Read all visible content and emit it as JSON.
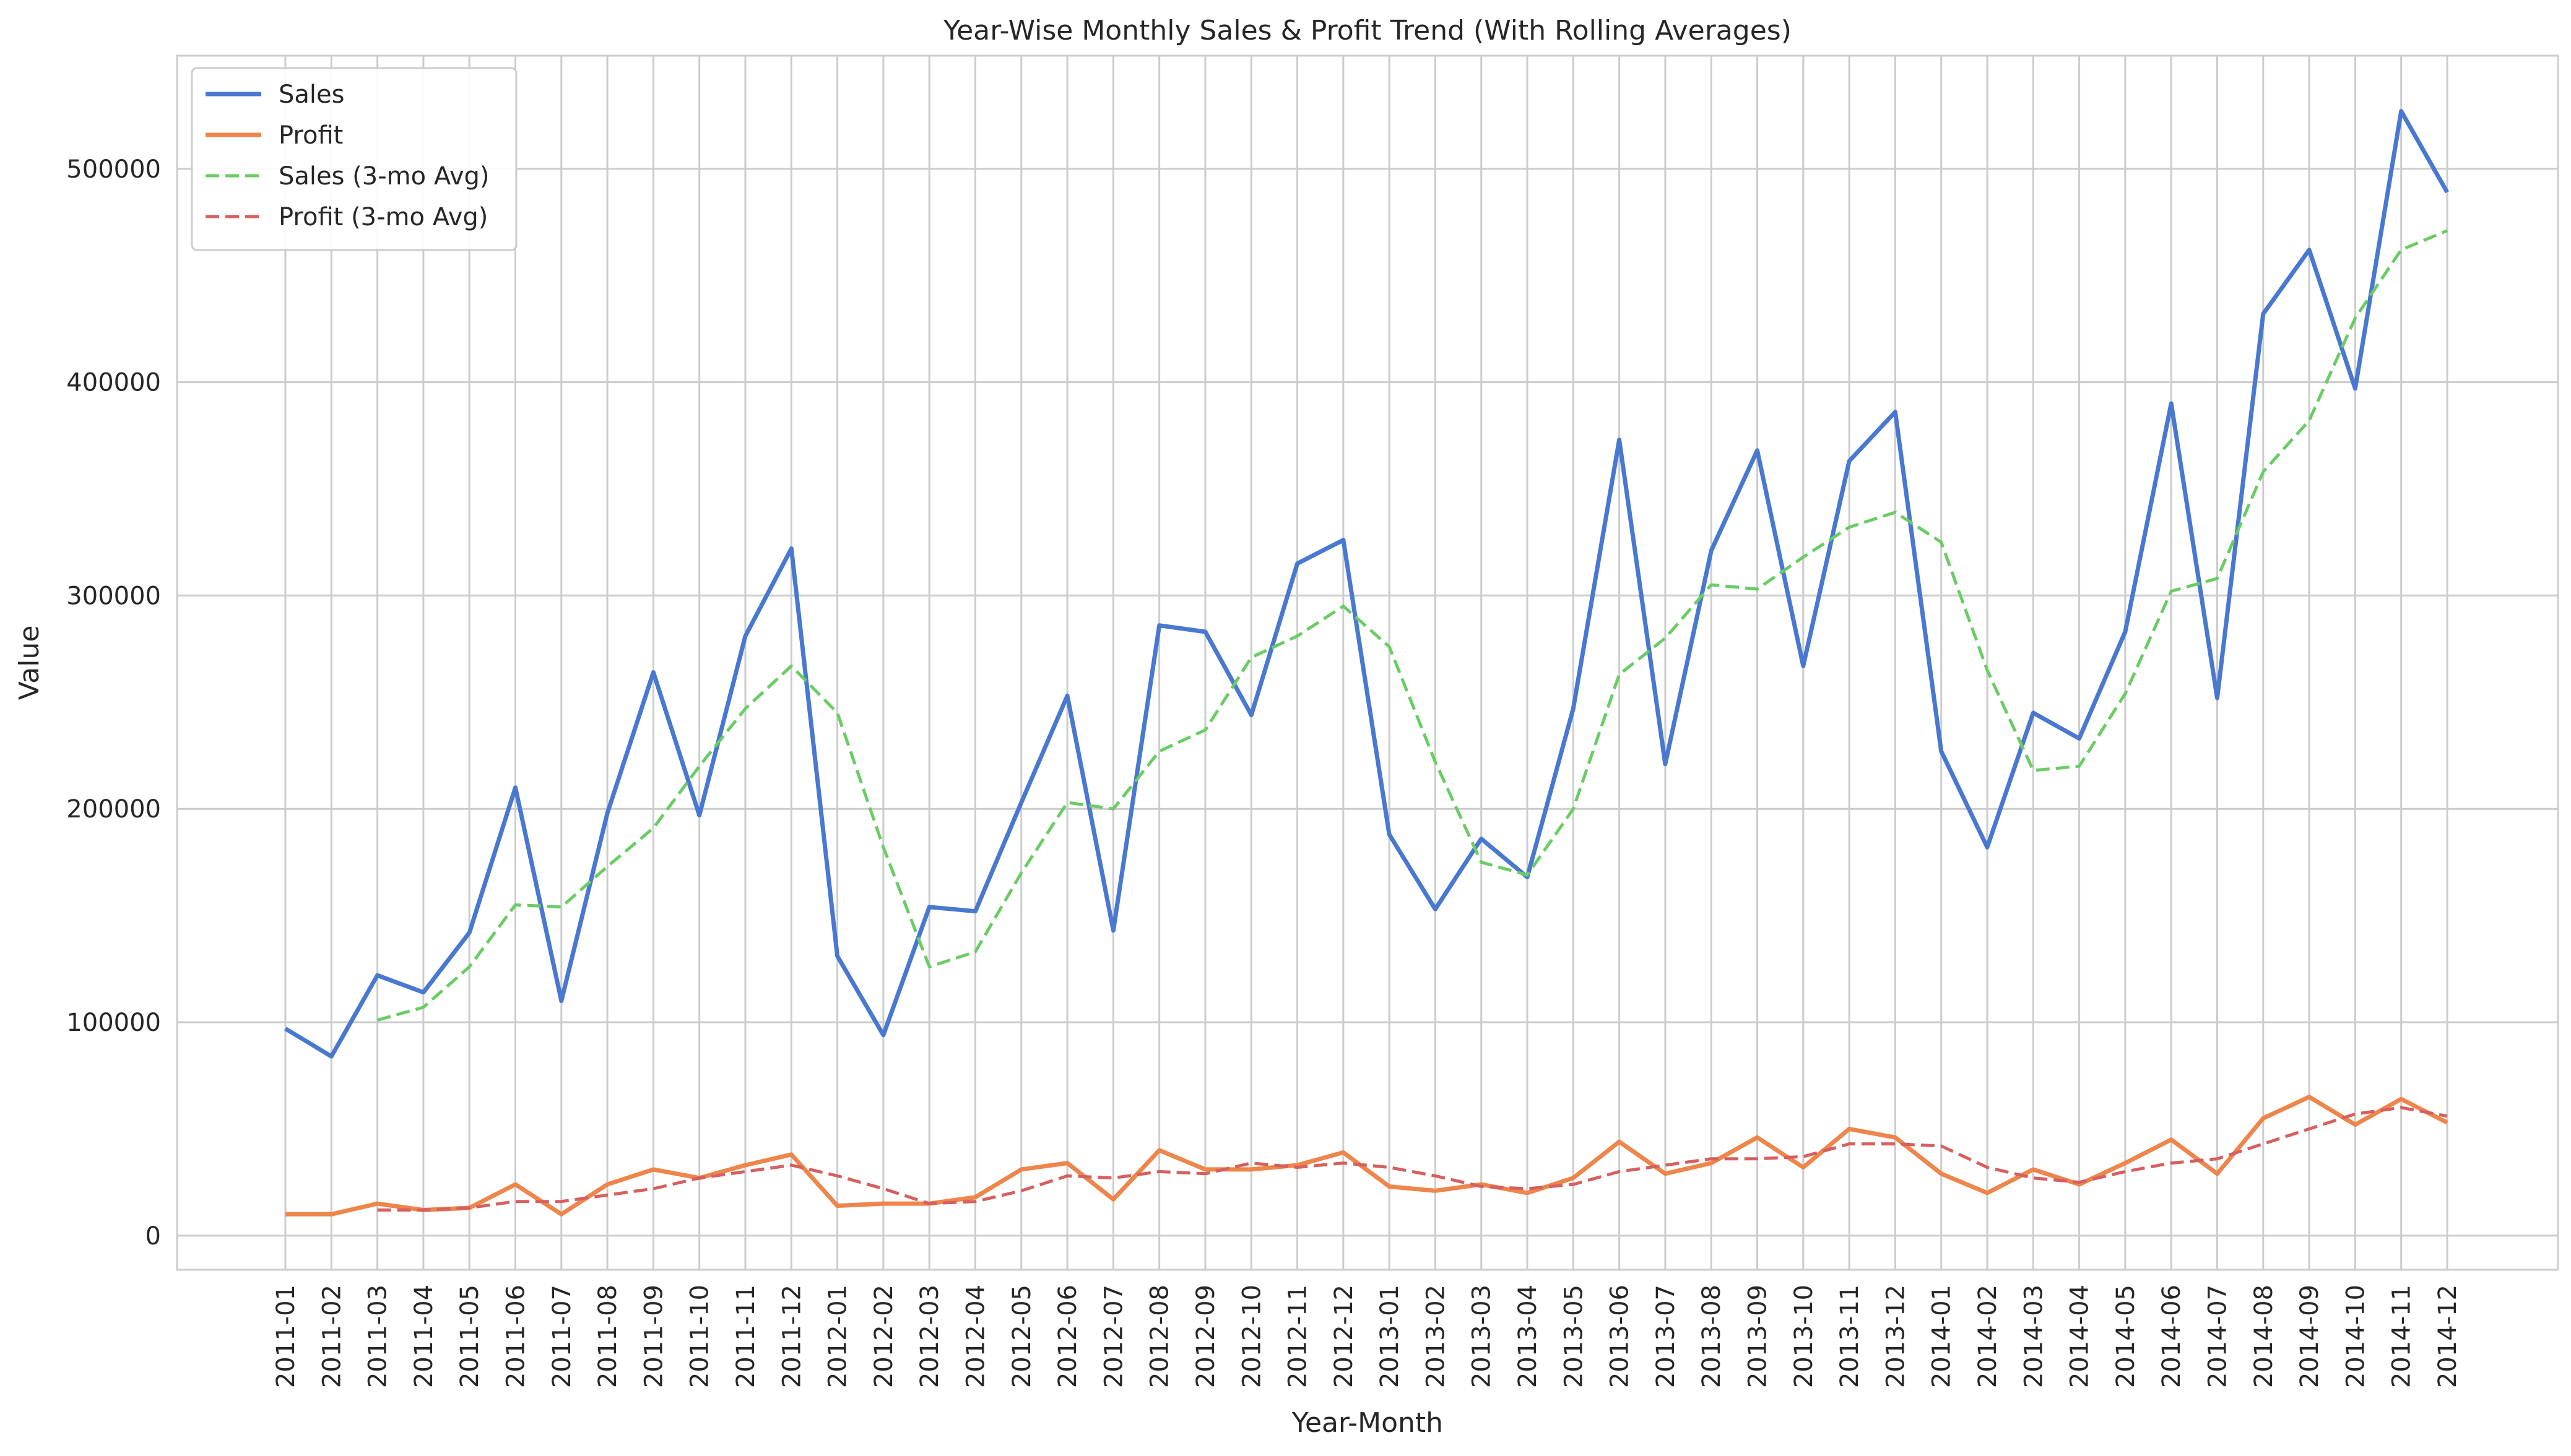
{
  "chart_data": {
    "type": "line",
    "title": "Year-Wise Monthly Sales & Profit Trend (With Rolling Averages)",
    "xlabel": "Year-Month",
    "ylabel": "Value",
    "ylim": [
      -16000,
      553000
    ],
    "yticks": [
      0,
      100000,
      200000,
      300000,
      400000,
      500000
    ],
    "grid": true,
    "legend_position": "top-left",
    "categories": [
      "2011-01",
      "2011-02",
      "2011-03",
      "2011-04",
      "2011-05",
      "2011-06",
      "2011-07",
      "2011-08",
      "2011-09",
      "2011-10",
      "2011-11",
      "2011-12",
      "2012-01",
      "2012-02",
      "2012-03",
      "2012-04",
      "2012-05",
      "2012-06",
      "2012-07",
      "2012-08",
      "2012-09",
      "2012-10",
      "2012-11",
      "2012-12",
      "2013-01",
      "2013-02",
      "2013-03",
      "2013-04",
      "2013-05",
      "2013-06",
      "2013-07",
      "2013-08",
      "2013-09",
      "2013-10",
      "2013-11",
      "2013-12",
      "2014-01",
      "2014-02",
      "2014-03",
      "2014-04",
      "2014-05",
      "2014-06",
      "2014-07",
      "2014-08",
      "2014-09",
      "2014-10",
      "2014-11",
      "2014-12"
    ],
    "series": [
      {
        "name": "Sales",
        "color": "#4878d0",
        "style": "solid",
        "values": [
          97000,
          84000,
          122000,
          114000,
          142000,
          210000,
          110000,
          198000,
          264000,
          197000,
          281000,
          322000,
          131000,
          94000,
          154000,
          152000,
          203000,
          253000,
          143000,
          286000,
          283000,
          244000,
          315000,
          326000,
          188000,
          153000,
          186000,
          168000,
          247000,
          373000,
          221000,
          321000,
          368000,
          267000,
          363000,
          386000,
          227000,
          182000,
          245000,
          233000,
          283000,
          390000,
          252000,
          432000,
          462000,
          397000,
          527000,
          489000
        ]
      },
      {
        "name": "Profit",
        "color": "#ee854a",
        "style": "solid",
        "values": [
          10000,
          10000,
          15000,
          12000,
          13000,
          24000,
          10000,
          24000,
          31000,
          27000,
          33000,
          38000,
          14000,
          15000,
          15000,
          18000,
          31000,
          34000,
          17000,
          40000,
          31000,
          31000,
          33000,
          39000,
          23000,
          21000,
          24000,
          20000,
          27000,
          44000,
          29000,
          34000,
          46000,
          32000,
          50000,
          46000,
          29000,
          20000,
          31000,
          24000,
          34000,
          45000,
          29000,
          55000,
          65000,
          52000,
          64000,
          53000
        ]
      },
      {
        "name": "Sales (3-mo Avg)",
        "color": "#6acc64",
        "style": "dashed",
        "values": [
          null,
          null,
          101000,
          107000,
          126000,
          155000,
          154000,
          173000,
          191000,
          220000,
          247000,
          267000,
          245000,
          182000,
          126000,
          133000,
          170000,
          203000,
          200000,
          227000,
          237000,
          271000,
          281000,
          295000,
          276000,
          222000,
          175000,
          169000,
          200000,
          263000,
          280000,
          305000,
          303000,
          318000,
          332000,
          339000,
          325000,
          265000,
          218000,
          220000,
          254000,
          302000,
          308000,
          358000,
          382000,
          430000,
          462000,
          471000
        ]
      },
      {
        "name": "Profit (3-mo Avg)",
        "color": "#d65f5f",
        "style": "dashed",
        "values": [
          null,
          null,
          12000,
          12000,
          13000,
          16000,
          16000,
          19000,
          22000,
          27000,
          30000,
          33000,
          28000,
          22000,
          15000,
          16000,
          21000,
          28000,
          27000,
          30000,
          29000,
          34000,
          32000,
          34000,
          32000,
          28000,
          23000,
          22000,
          24000,
          30000,
          33000,
          36000,
          36000,
          37000,
          43000,
          43000,
          42000,
          32000,
          27000,
          25000,
          30000,
          34000,
          36000,
          43000,
          50000,
          57000,
          60000,
          56000
        ]
      }
    ]
  }
}
